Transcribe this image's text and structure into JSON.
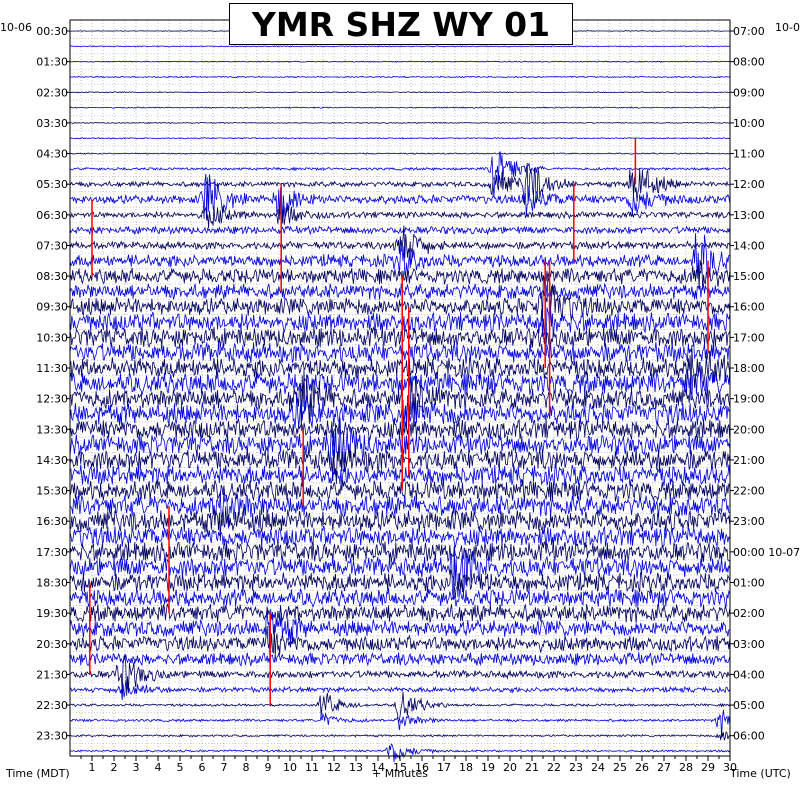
{
  "chart_data": {
    "type": "line",
    "title": "YMR SHZ WY 01",
    "xlabel": "+ Minutes",
    "left_axis_label": "Time (MDT)",
    "right_axis_label": "Time (UTC)",
    "left_date_label": "10-06",
    "right_date_label": "10-0",
    "x_ticks": [
      "1",
      "2",
      "3",
      "4",
      "5",
      "6",
      "7",
      "8",
      "9",
      "10",
      "11",
      "12",
      "13",
      "14",
      "15",
      "16",
      "17",
      "18",
      "19",
      "20",
      "21",
      "22",
      "23",
      "24",
      "25",
      "26",
      "27",
      "28",
      "29",
      "30"
    ],
    "xlim": [
      0,
      30
    ],
    "left_time_labels": [
      "00:30",
      "01:30",
      "02:30",
      "03:30",
      "04:30",
      "05:30",
      "06:30",
      "07:30",
      "08:30",
      "09:30",
      "10:30",
      "11:30",
      "12:30",
      "13:30",
      "14:30",
      "15:30",
      "16:30",
      "17:30",
      "18:30",
      "19:30",
      "20:30",
      "21:30",
      "22:30",
      "23:30"
    ],
    "right_time_labels": [
      "07:00",
      "08:00",
      "09:00",
      "10:00",
      "11:00",
      "12:00",
      "13:00",
      "14:00",
      "15:00",
      "16:00",
      "17:00",
      "18:00",
      "19:00",
      "20:00",
      "21:00",
      "22:00",
      "23:00",
      "00:00 10-07",
      "01:00",
      "02:00",
      "03:00",
      "04:00",
      "05:00",
      "06:00"
    ],
    "trace_count": 48,
    "trace_interval_minutes": 30,
    "trace_colors": [
      "#00005e",
      "#0000dd"
    ],
    "event_marker_color": "#ff0000",
    "grid": true,
    "trace_amplitude_profile": [
      0.3,
      0.4,
      0.4,
      0.5,
      0.4,
      0.5,
      0.4,
      0.5,
      0.5,
      1.0,
      2.0,
      3.5,
      2.5,
      3.0,
      3.0,
      5.0,
      6.0,
      6.0,
      7.0,
      7.5,
      8.0,
      8.0,
      8.0,
      8.5,
      8.0,
      8.5,
      8.0,
      8.0,
      8.5,
      8.0,
      8.0,
      8.0,
      8.5,
      8.0,
      8.0,
      8.0,
      7.5,
      7.0,
      7.0,
      6.5,
      6.0,
      5.0,
      3.0,
      2.0,
      1.0,
      1.0,
      0.8,
      0.8
    ],
    "red_marks": [
      {
        "minute": 1.0,
        "trace_start": 11,
        "trace_end": 16
      },
      {
        "minute": 9.6,
        "trace_start": 10,
        "trace_end": 17
      },
      {
        "minute": 22.9,
        "trace_start": 10,
        "trace_end": 15
      },
      {
        "minute": 25.7,
        "trace_start": 7,
        "trace_end": 10
      },
      {
        "minute": 21.6,
        "trace_start": 15,
        "trace_end": 22
      },
      {
        "minute": 21.8,
        "trace_start": 15,
        "trace_end": 25
      },
      {
        "minute": 29.0,
        "trace_start": 15,
        "trace_end": 21
      },
      {
        "minute": 15.1,
        "trace_start": 16,
        "trace_end": 30
      },
      {
        "minute": 15.4,
        "trace_start": 18,
        "trace_end": 29
      },
      {
        "minute": 10.6,
        "trace_start": 26,
        "trace_end": 31
      },
      {
        "minute": 4.5,
        "trace_start": 31,
        "trace_end": 38
      },
      {
        "minute": 0.9,
        "trace_start": 36,
        "trace_end": 42
      },
      {
        "minute": 9.1,
        "trace_start": 38,
        "trace_end": 44
      }
    ],
    "bursts": [
      {
        "minute": 19.3,
        "trace": 9,
        "strength": 3.5
      },
      {
        "minute": 20.8,
        "trace": 10,
        "strength": 3.0
      },
      {
        "minute": 25.6,
        "trace": 10,
        "strength": 3.5
      },
      {
        "minute": 6.2,
        "trace": 11,
        "strength": 3.0
      },
      {
        "minute": 9.5,
        "trace": 11,
        "strength": 2.5
      },
      {
        "minute": 15.0,
        "trace": 14,
        "strength": 3.0
      },
      {
        "minute": 28.5,
        "trace": 15,
        "strength": 3.0
      },
      {
        "minute": 21.5,
        "trace": 18,
        "strength": 3.5
      },
      {
        "minute": 28.2,
        "trace": 22,
        "strength": 3.0
      },
      {
        "minute": 10.4,
        "trace": 24,
        "strength": 3.0
      },
      {
        "minute": 15.2,
        "trace": 24,
        "strength": 3.0
      },
      {
        "minute": 12.0,
        "trace": 27,
        "strength": 3.0
      },
      {
        "minute": 6.8,
        "trace": 31,
        "strength": 2.5
      },
      {
        "minute": 17.5,
        "trace": 35,
        "strength": 3.0
      },
      {
        "minute": 9.0,
        "trace": 39,
        "strength": 2.5
      },
      {
        "minute": 2.3,
        "trace": 42,
        "strength": 2.5
      },
      {
        "minute": 15.0,
        "trace": 44,
        "strength": 2.0
      },
      {
        "minute": 11.5,
        "trace": 44,
        "strength": 1.5
      },
      {
        "minute": 14.6,
        "trace": 47,
        "strength": 1.5
      },
      {
        "minute": 29.6,
        "trace": 45,
        "strength": 1.5
      }
    ]
  }
}
